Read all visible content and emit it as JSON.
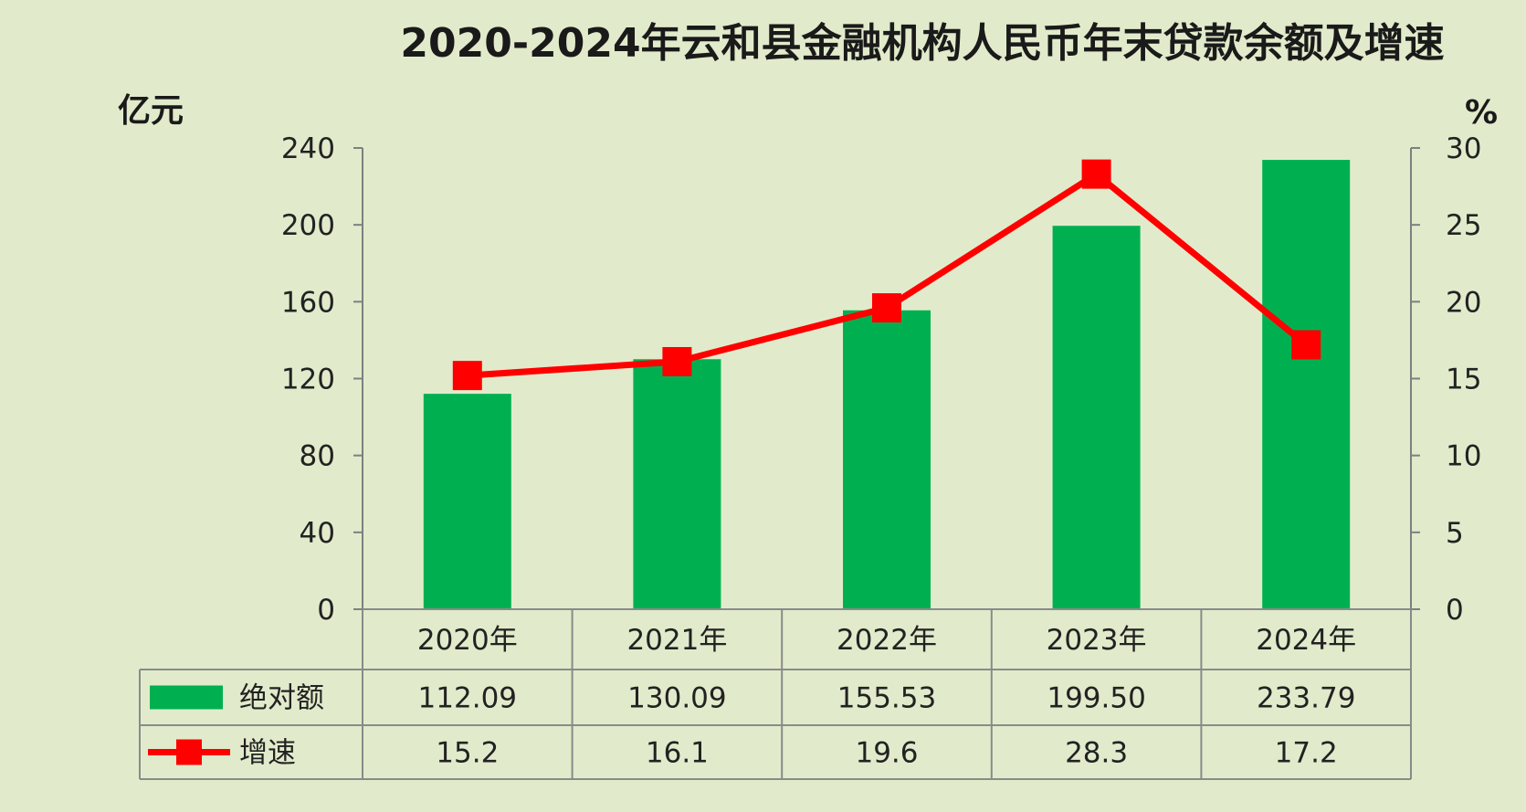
{
  "chart_data": {
    "type": "bar",
    "title": "2020-2024年云和县金融机构人民币年末贷款余额及增速",
    "categories": [
      "2020年",
      "2021年",
      "2022年",
      "2023年",
      "2024年"
    ],
    "series": [
      {
        "name": "绝对额",
        "type": "bar",
        "axis": "left",
        "color": "#00b050",
        "values": [
          112.09,
          130.09,
          155.53,
          199.5,
          233.79
        ],
        "labels": [
          "112.09",
          "130.09",
          "155.53",
          "199.50",
          "233.79"
        ]
      },
      {
        "name": "增速",
        "type": "line",
        "axis": "right",
        "color": "#ff0000",
        "marker": "square",
        "values": [
          15.2,
          16.1,
          19.6,
          28.3,
          17.2
        ],
        "labels": [
          "15.2",
          "16.1",
          "19.6",
          "28.3",
          "17.2"
        ]
      }
    ],
    "y_left": {
      "unit_label": "亿元",
      "range": [
        0,
        240
      ],
      "ticks": [
        0,
        40,
        80,
        120,
        160,
        200,
        240
      ]
    },
    "y_right": {
      "unit_label": "%",
      "range": [
        0,
        30
      ],
      "ticks": [
        0,
        5,
        10,
        15,
        20,
        25,
        30
      ]
    },
    "grid": false,
    "legend_placement": "data-table-left",
    "data_table": true,
    "colors": {
      "background": "#e1ebcb",
      "bar": "#00b050",
      "line": "#ff0000",
      "table_border": "#8a8a8a"
    }
  }
}
